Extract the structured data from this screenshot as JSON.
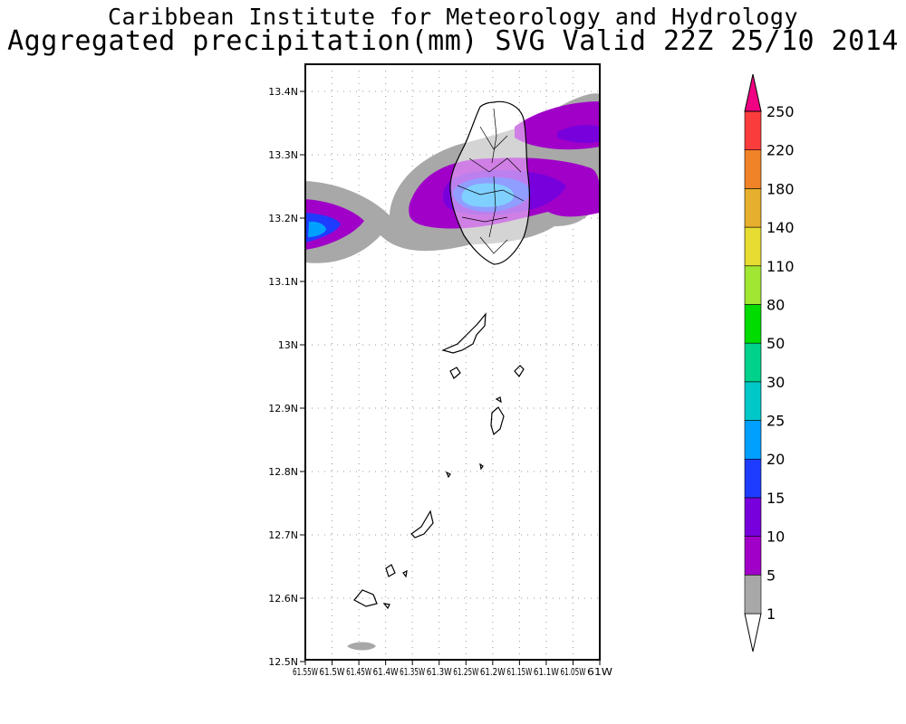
{
  "header": {
    "institute": "Caribbean Institute for Meteorology and Hydrology",
    "product": "Aggregated precipitation(mm) SVG Valid 22Z 25/10 2014"
  },
  "map": {
    "lat_labels": [
      "13.4N",
      "13.3N",
      "13.2N",
      "13.1N",
      "13N",
      "12.9N",
      "12.8N",
      "12.7N",
      "12.6N",
      "12.5N"
    ],
    "lon_labels": [
      "61.55W",
      "61.5W",
      "61.45W",
      "61.4W",
      "61.35W",
      "61.3W",
      "61.25W",
      "61.2W",
      "61.15W",
      "61.1W",
      "61.05W",
      "61W"
    ]
  },
  "legend": {
    "unit": "mm",
    "levels": [
      "1",
      "5",
      "10",
      "15",
      "20",
      "25",
      "30",
      "50",
      "80",
      "110",
      "140",
      "180",
      "220",
      "250"
    ],
    "colors": [
      "#a8a8a8",
      "#a000c8",
      "#7800dc",
      "#1e3cff",
      "#00a0ff",
      "#00c8c8",
      "#00d28c",
      "#00dc00",
      "#a0e632",
      "#e6dc32",
      "#e6af2d",
      "#f08228",
      "#fa3c3c",
      "#f00082"
    ]
  }
}
